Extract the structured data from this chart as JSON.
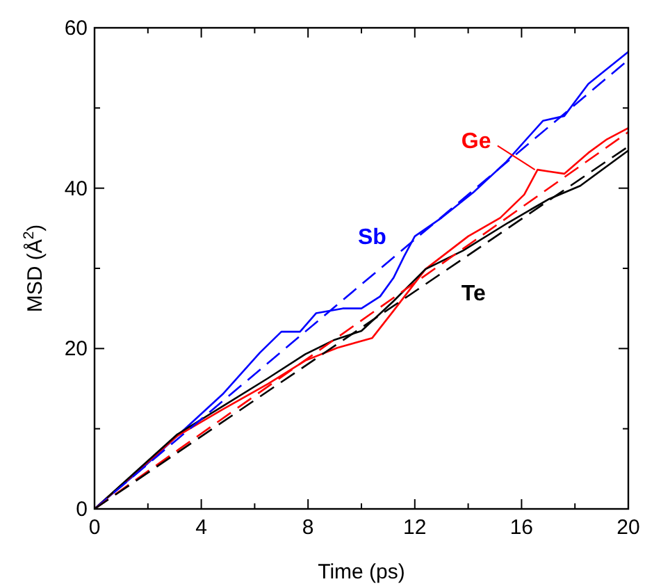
{
  "chart_data": {
    "type": "line",
    "xlabel": "Time (ps)",
    "ylabel": "MSD (Å$^{2}$)",
    "xlim": [
      0,
      20
    ],
    "ylim": [
      0,
      60
    ],
    "xticks": [
      0,
      {
        "value": 2,
        "label": null
      },
      4,
      {
        "value": 6,
        "label": null
      },
      8,
      {
        "value": 10,
        "label": null
      },
      12,
      {
        "value": 14,
        "label": null
      },
      16,
      {
        "value": 18,
        "label": null
      },
      20
    ],
    "yticks": [
      0,
      {
        "value": 10,
        "label": null
      },
      20,
      {
        "value": 30,
        "label": null
      },
      40,
      {
        "value": 50,
        "label": null
      },
      60
    ],
    "grid": false,
    "marker": "none",
    "line_style": "solid",
    "series": [
      {
        "name": "Sb",
        "color": "#0000ff",
        "x": [
          0,
          1.8,
          3.1,
          4.8,
          6.2,
          7,
          7.7,
          8.3,
          9.3,
          10,
          10.7,
          11.2,
          11.6,
          12,
          13,
          14.2,
          15.4,
          16.8,
          17.6,
          18.5,
          20
        ],
        "values": [
          0,
          5.1,
          9.1,
          14.3,
          19.5,
          22.1,
          22.1,
          24.4,
          25,
          25,
          26.5,
          28.8,
          31.5,
          34,
          36.3,
          39.5,
          43.2,
          48.4,
          49,
          53,
          57
        ]
      },
      {
        "name": "Ge",
        "color": "#ff0000",
        "x": [
          0,
          3.1,
          4.8,
          6.5,
          7.9,
          9.1,
          10.4,
          11.2,
          12.4,
          14,
          15.2,
          16.1,
          16.6,
          17,
          17.6,
          18.5,
          19.2,
          20
        ],
        "values": [
          0,
          9.1,
          12.4,
          15.6,
          18.5,
          20.1,
          21.3,
          24.7,
          29.9,
          34,
          36.3,
          39.2,
          42.3,
          42.1,
          41.8,
          44.4,
          46.1,
          47.5
        ]
      },
      {
        "name": "Te",
        "color": "#000000",
        "x": [
          0,
          3.1,
          4.8,
          6.5,
          7.9,
          9,
          10,
          11.2,
          12.4,
          13.8,
          15.5,
          17,
          18.2,
          20
        ],
        "values": [
          0,
          9.3,
          12.8,
          16.3,
          19.3,
          21.1,
          22.2,
          25.9,
          29.9,
          32.2,
          35.7,
          38.6,
          40.3,
          44.7
        ]
      },
      {
        "color": "#0000ff",
        "line_style": "dashed",
        "x": [
          0,
          20
        ],
        "values": [
          0,
          56
        ]
      },
      {
        "color": "#ff0000",
        "line_style": "dashed",
        "x": [
          0,
          20
        ],
        "values": [
          0,
          47
        ]
      },
      {
        "color": "#000000",
        "line_style": "dashed",
        "x": [
          0,
          20
        ],
        "values": [
          0,
          45.2
        ]
      }
    ]
  }
}
